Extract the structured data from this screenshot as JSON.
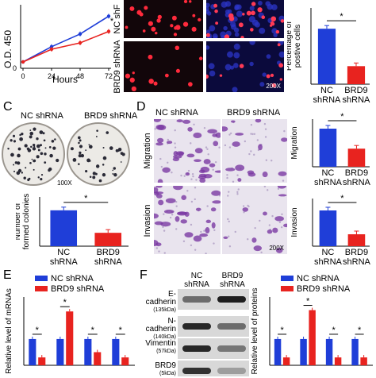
{
  "panel_labels": {
    "c": "C",
    "d": "D",
    "e": "E",
    "f": "F"
  },
  "colors": {
    "nc": "#1f3ed8",
    "brd9": "#e8231f"
  },
  "panelA": {
    "chart_data": {
      "type": "line",
      "x": [
        0,
        24,
        48,
        72
      ],
      "series": [
        {
          "name": "NC shRNA",
          "values": [
            0.25,
            0.85,
            1.35,
            2.05
          ]
        },
        {
          "name": "BRD9 shRNA",
          "values": [
            0.25,
            0.75,
            1.0,
            1.45
          ]
        }
      ],
      "xlabel": "Hours",
      "ylabel": "O.D. 450",
      "ylim": [
        0,
        2.5
      ],
      "xticks": [
        "0",
        "24",
        "48",
        "72"
      ],
      "yticks": [
        "0"
      ],
      "annotation": "*"
    }
  },
  "panelB": {
    "row_labels": [
      "NC shF",
      "BRD9 shRNA"
    ],
    "magnification": "200X",
    "chart_data": {
      "type": "bar",
      "categories": [
        "NC\nshRNA",
        "BRD9\nshRNA"
      ],
      "values": [
        40,
        13
      ],
      "ylabel": "Percentage of\npostive cells",
      "ylim": [
        0,
        55
      ],
      "annotation": "*"
    }
  },
  "panelC": {
    "plate_labels": [
      "NC shRNA",
      "BRD9 shRNA"
    ],
    "magnification": "100X",
    "chart_data": {
      "type": "bar",
      "categories": [
        "NC\nshRNA",
        "BRD9\nshRNA"
      ],
      "values": [
        255,
        95
      ],
      "ylabel": "Number of\nformed colonies",
      "ylim": [
        0,
        350
      ],
      "annotation": "*"
    }
  },
  "panelD": {
    "col_labels": [
      "NC shRNA",
      "BRD9 shRNA"
    ],
    "row_labels": [
      "Migration",
      "Invasion"
    ],
    "magnification": "200X",
    "charts": [
      {
        "type": "bar",
        "categories": [
          "NC\nshRNA",
          "BRD9\nshRNA"
        ],
        "values": [
          80,
          38
        ],
        "ylabel": "Migration",
        "ylim": [
          0,
          100
        ],
        "annotation": "*"
      },
      {
        "type": "bar",
        "categories": [
          "NC\nshRNA",
          "BRD9\nshRNA"
        ],
        "values": [
          75,
          25
        ],
        "ylabel": "Invasion",
        "ylim": [
          0,
          100
        ],
        "annotation": "*"
      }
    ]
  },
  "panelE": {
    "chart_data": {
      "type": "bar",
      "groups": 4,
      "series": [
        {
          "name": "NC shRNA",
          "values": [
            1.0,
            1.0,
            1.0,
            1.0
          ]
        },
        {
          "name": "BRD9 shRNA",
          "values": [
            0.3,
            2.05,
            0.5,
            0.3
          ]
        }
      ],
      "ylabel": "Relative level of mRNAs",
      "ylim": [
        0,
        2.6
      ],
      "annotation": "*"
    }
  },
  "panelF": {
    "col_labels": [
      "NC\nshRNA",
      "BRD9\nshRNA"
    ],
    "blots": [
      {
        "name": "E-cadherin",
        "size": "(135kDa)"
      },
      {
        "name": "N-cadherin",
        "size": "(140kDa)"
      },
      {
        "name": "Vimentin",
        "size": "(57kDa)"
      },
      {
        "name": "BRD9",
        "size": "(5kDa)"
      }
    ],
    "chart_data": {
      "type": "bar",
      "groups": 4,
      "series": [
        {
          "name": "NC shRNA",
          "values": [
            1.0,
            1.0,
            1.0,
            1.0
          ]
        },
        {
          "name": "BRD9 shRNA",
          "values": [
            0.3,
            2.1,
            0.3,
            0.3
          ]
        }
      ],
      "ylabel": "Relative level of proteins",
      "ylim": [
        0,
        2.6
      ],
      "annotation": "*"
    }
  }
}
